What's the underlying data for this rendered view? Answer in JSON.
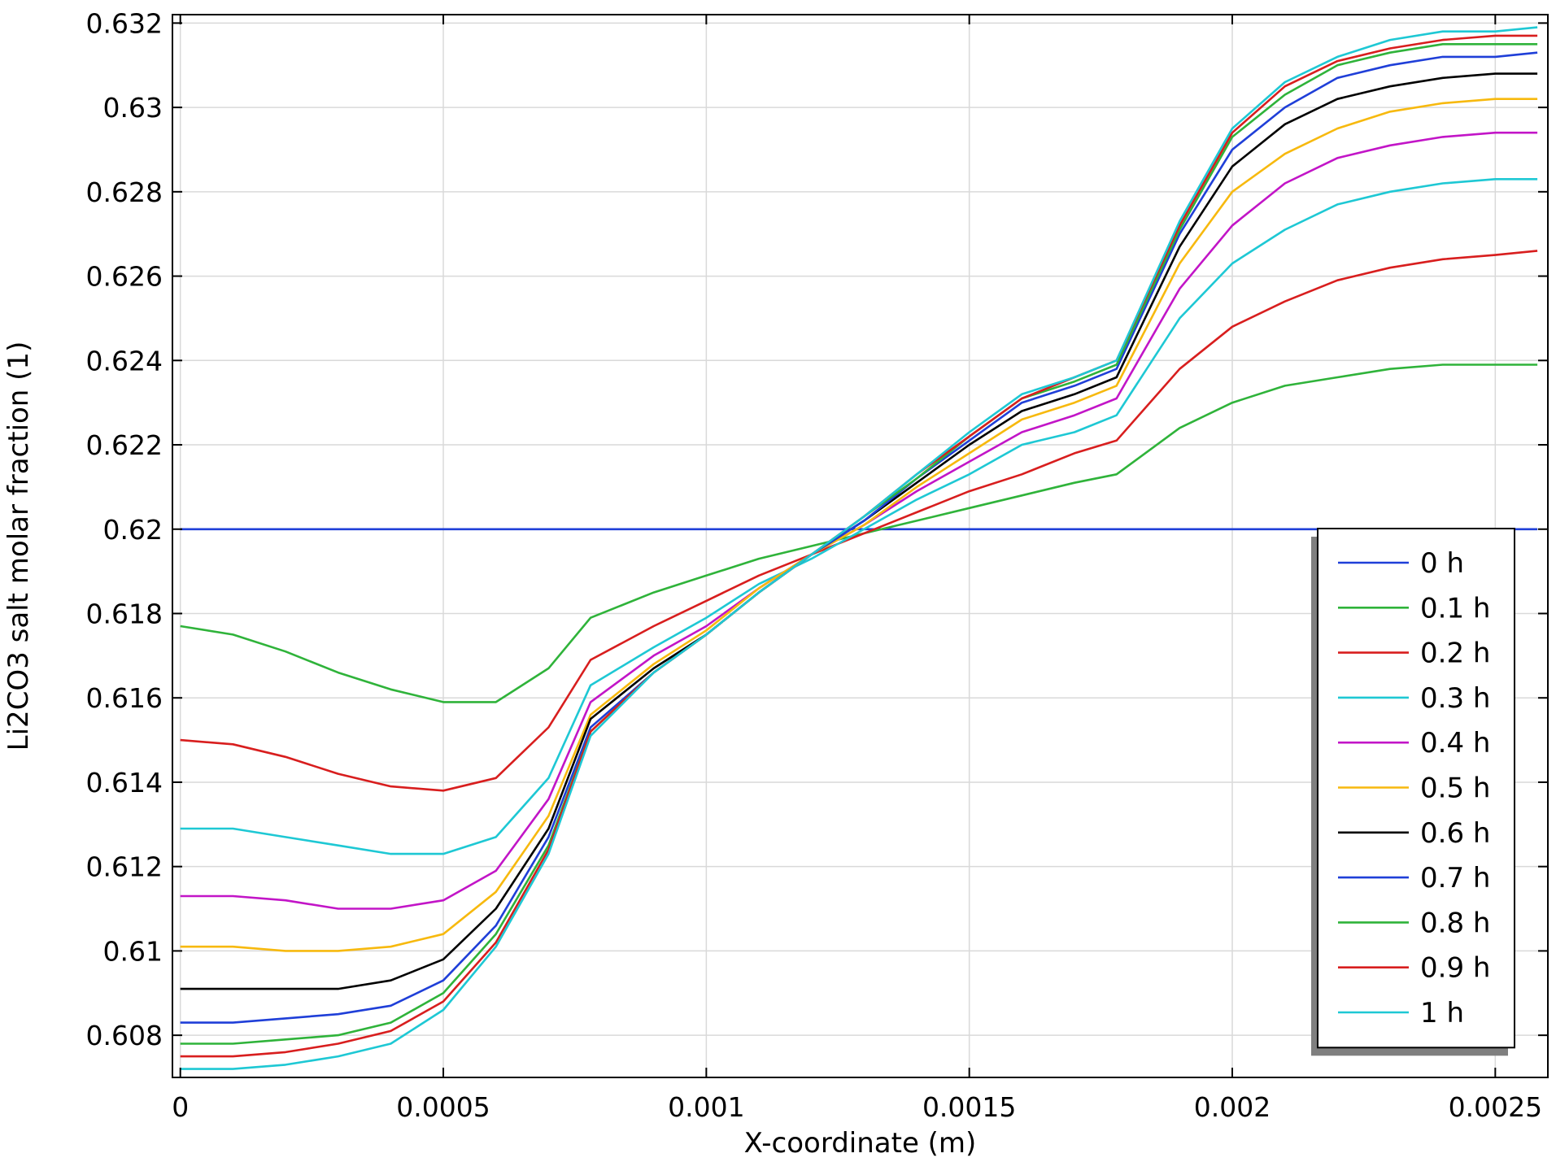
{
  "chart_data": {
    "type": "line",
    "title": "",
    "xlabel": "X-coordinate (m)",
    "ylabel": "Li2CO3 salt molar fraction (1)",
    "xlim": [
      -1.5e-05,
      0.0026
    ],
    "ylim": [
      0.607,
      0.6322
    ],
    "grid": true,
    "legend_position": "bottom-right",
    "x_ticks": [
      0,
      0.0005,
      0.001,
      0.0015,
      0.002,
      0.0025
    ],
    "x_tick_labels": [
      "0",
      "0.0005",
      "0.001",
      "0.0015",
      "0.002",
      "0.0025"
    ],
    "y_ticks": [
      0.608,
      0.61,
      0.612,
      0.614,
      0.616,
      0.618,
      0.62,
      0.622,
      0.624,
      0.626,
      0.628,
      0.63,
      0.632
    ],
    "y_tick_labels": [
      "0.608",
      "0.61",
      "0.612",
      "0.614",
      "0.616",
      "0.618",
      "0.62",
      "0.622",
      "0.624",
      "0.626",
      "0.628",
      "0.63",
      "0.632"
    ],
    "x": [
      0,
      0.0001,
      0.0002,
      0.0003,
      0.0004,
      0.0005,
      0.0006,
      0.0007,
      0.00078,
      0.0009,
      0.001,
      0.0011,
      0.0012,
      0.0013,
      0.0014,
      0.0015,
      0.0016,
      0.0017,
      0.00178,
      0.0019,
      0.002,
      0.0021,
      0.0022,
      0.0023,
      0.0024,
      0.0025,
      0.00258
    ],
    "series": [
      {
        "name": "0 h",
        "color": "#1f3fd8",
        "values": [
          0.62,
          0.62,
          0.62,
          0.62,
          0.62,
          0.62,
          0.62,
          0.62,
          0.62,
          0.62,
          0.62,
          0.62,
          0.62,
          0.62,
          0.62,
          0.62,
          0.62,
          0.62,
          0.62,
          0.62,
          0.62,
          0.62,
          0.62,
          0.62,
          0.62,
          0.62,
          0.62
        ]
      },
      {
        "name": "0.1 h",
        "color": "#2fb33a",
        "values": [
          0.6177,
          0.6175,
          0.6171,
          0.6166,
          0.6162,
          0.6159,
          0.6159,
          0.6167,
          0.6179,
          0.6185,
          0.6189,
          0.6193,
          0.6196,
          0.6199,
          0.6202,
          0.6205,
          0.6208,
          0.6211,
          0.6213,
          0.6224,
          0.623,
          0.6234,
          0.6236,
          0.6238,
          0.6239,
          0.6239,
          0.6239
        ]
      },
      {
        "name": "0.2 h",
        "color": "#d81e1e",
        "values": [
          0.615,
          0.6149,
          0.6146,
          0.6142,
          0.6139,
          0.6138,
          0.6141,
          0.6153,
          0.6169,
          0.6177,
          0.6183,
          0.6189,
          0.6194,
          0.6199,
          0.6204,
          0.6209,
          0.6213,
          0.6218,
          0.6221,
          0.6238,
          0.6248,
          0.6254,
          0.6259,
          0.6262,
          0.6264,
          0.6265,
          0.6266
        ]
      },
      {
        "name": "0.3 h",
        "color": "#1ec8d4",
        "values": [
          0.6129,
          0.6129,
          0.6127,
          0.6125,
          0.6123,
          0.6123,
          0.6127,
          0.6141,
          0.6163,
          0.6172,
          0.6179,
          0.6187,
          0.6193,
          0.62,
          0.6207,
          0.6213,
          0.622,
          0.6223,
          0.6227,
          0.625,
          0.6263,
          0.6271,
          0.6277,
          0.628,
          0.6282,
          0.6283,
          0.6283
        ]
      },
      {
        "name": "0.4 h",
        "color": "#c215c7",
        "values": [
          0.6113,
          0.6113,
          0.6112,
          0.611,
          0.611,
          0.6112,
          0.6119,
          0.6136,
          0.6159,
          0.617,
          0.6177,
          0.6186,
          0.6194,
          0.6201,
          0.6209,
          0.6216,
          0.6223,
          0.6227,
          0.6231,
          0.6257,
          0.6272,
          0.6282,
          0.6288,
          0.6291,
          0.6293,
          0.6294,
          0.6294
        ]
      },
      {
        "name": "0.5 h",
        "color": "#f7b90e",
        "values": [
          0.6101,
          0.6101,
          0.61,
          0.61,
          0.6101,
          0.6104,
          0.6114,
          0.6132,
          0.6156,
          0.6168,
          0.6176,
          0.6186,
          0.6194,
          0.6201,
          0.621,
          0.6218,
          0.6226,
          0.623,
          0.6234,
          0.6263,
          0.628,
          0.6289,
          0.6295,
          0.6299,
          0.6301,
          0.6302,
          0.6302
        ]
      },
      {
        "name": "0.6 h",
        "color": "#000000",
        "values": [
          0.6091,
          0.6091,
          0.6091,
          0.6091,
          0.6093,
          0.6098,
          0.611,
          0.6129,
          0.6155,
          0.6167,
          0.6175,
          0.6185,
          0.6194,
          0.6202,
          0.6211,
          0.622,
          0.6228,
          0.6232,
          0.6236,
          0.6267,
          0.6286,
          0.6296,
          0.6302,
          0.6305,
          0.6307,
          0.6308,
          0.6308
        ]
      },
      {
        "name": "0.7 h",
        "color": "#1f3fd8",
        "values": [
          0.6083,
          0.6083,
          0.6084,
          0.6085,
          0.6087,
          0.6093,
          0.6106,
          0.6127,
          0.6153,
          0.6166,
          0.6175,
          0.6185,
          0.6194,
          0.6202,
          0.6212,
          0.6221,
          0.623,
          0.6234,
          0.6238,
          0.627,
          0.629,
          0.63,
          0.6307,
          0.631,
          0.6312,
          0.6312,
          0.6313
        ]
      },
      {
        "name": "0.8 h",
        "color": "#2fb33a",
        "values": [
          0.6078,
          0.6078,
          0.6079,
          0.608,
          0.6083,
          0.609,
          0.6104,
          0.6125,
          0.6152,
          0.6166,
          0.6175,
          0.6185,
          0.6194,
          0.6203,
          0.6212,
          0.6222,
          0.6231,
          0.6235,
          0.6239,
          0.6271,
          0.6293,
          0.6303,
          0.631,
          0.6313,
          0.6315,
          0.6315,
          0.6315
        ]
      },
      {
        "name": "0.9 h",
        "color": "#d81e1e",
        "values": [
          0.6075,
          0.6075,
          0.6076,
          0.6078,
          0.6081,
          0.6088,
          0.6102,
          0.6124,
          0.6152,
          0.6166,
          0.6175,
          0.6185,
          0.6194,
          0.6203,
          0.6213,
          0.6222,
          0.6231,
          0.6236,
          0.624,
          0.6272,
          0.6294,
          0.6305,
          0.6311,
          0.6314,
          0.6316,
          0.6317,
          0.6317
        ]
      },
      {
        "name": "1 h",
        "color": "#1ec8d4",
        "values": [
          0.6072,
          0.6072,
          0.6073,
          0.6075,
          0.6078,
          0.6086,
          0.6101,
          0.6123,
          0.6151,
          0.6166,
          0.6175,
          0.6185,
          0.6194,
          0.6203,
          0.6213,
          0.6223,
          0.6232,
          0.6236,
          0.624,
          0.6273,
          0.6295,
          0.6306,
          0.6312,
          0.6316,
          0.6318,
          0.6318,
          0.6319
        ]
      }
    ]
  }
}
